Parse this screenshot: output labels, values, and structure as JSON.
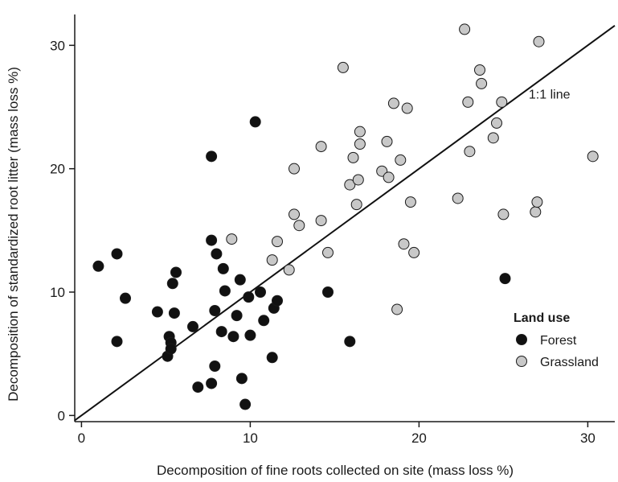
{
  "chart_data": {
    "type": "scatter",
    "xlabel": "Decomposition of fine roots collected on site (mass loss %)",
    "ylabel": "Decomposition of standardized root litter (mass loss %)",
    "xlim": [
      -0.4,
      31.6
    ],
    "ylim": [
      -0.5,
      32.5
    ],
    "xticks": [
      0,
      10,
      20,
      30
    ],
    "yticks": [
      0,
      10,
      20,
      30
    ],
    "grid": false,
    "legend": {
      "title": "Land use",
      "position": "lower-right"
    },
    "annotations": [
      {
        "text": "1:1 line",
        "x": 26.5,
        "y": 25.7
      }
    ],
    "reference_line": {
      "name": "1:1 line",
      "x": [
        -0.4,
        31.6
      ],
      "y": [
        -0.4,
        31.6
      ]
    },
    "series": [
      {
        "name": "Forest",
        "color": "#111111",
        "points": [
          [
            1.0,
            12.1
          ],
          [
            2.1,
            13.1
          ],
          [
            2.1,
            6.0
          ],
          [
            2.6,
            9.5
          ],
          [
            4.5,
            8.4
          ],
          [
            5.1,
            4.8
          ],
          [
            5.2,
            6.4
          ],
          [
            5.3,
            5.9
          ],
          [
            5.3,
            5.4
          ],
          [
            5.4,
            10.7
          ],
          [
            5.5,
            8.3
          ],
          [
            5.6,
            11.6
          ],
          [
            6.6,
            7.2
          ],
          [
            6.9,
            2.3
          ],
          [
            7.7,
            2.6
          ],
          [
            7.7,
            14.2
          ],
          [
            7.7,
            21.0
          ],
          [
            7.9,
            8.5
          ],
          [
            7.9,
            4.0
          ],
          [
            8.0,
            13.1
          ],
          [
            8.3,
            6.8
          ],
          [
            8.4,
            11.9
          ],
          [
            8.5,
            10.1
          ],
          [
            9.0,
            6.4
          ],
          [
            9.2,
            8.1
          ],
          [
            9.4,
            11.0
          ],
          [
            9.5,
            3.0
          ],
          [
            9.7,
            0.9
          ],
          [
            9.9,
            9.6
          ],
          [
            10.0,
            6.5
          ],
          [
            10.3,
            23.8
          ],
          [
            10.6,
            10.0
          ],
          [
            10.8,
            7.7
          ],
          [
            11.3,
            4.7
          ],
          [
            11.4,
            8.7
          ],
          [
            11.6,
            9.3
          ],
          [
            14.6,
            10.0
          ],
          [
            15.9,
            6.0
          ],
          [
            25.1,
            11.1
          ]
        ]
      },
      {
        "name": "Grassland",
        "color": "#c8c8c8",
        "points": [
          [
            8.9,
            14.3
          ],
          [
            11.3,
            12.6
          ],
          [
            11.6,
            14.1
          ],
          [
            12.3,
            11.8
          ],
          [
            12.6,
            20.0
          ],
          [
            12.6,
            16.3
          ],
          [
            12.9,
            15.4
          ],
          [
            14.2,
            15.8
          ],
          [
            14.2,
            21.8
          ],
          [
            14.6,
            13.2
          ],
          [
            15.5,
            28.2
          ],
          [
            15.9,
            18.7
          ],
          [
            16.1,
            20.9
          ],
          [
            16.3,
            17.1
          ],
          [
            16.4,
            19.1
          ],
          [
            16.5,
            23.0
          ],
          [
            16.5,
            22.0
          ],
          [
            17.8,
            19.8
          ],
          [
            18.1,
            22.2
          ],
          [
            18.2,
            19.3
          ],
          [
            18.5,
            25.3
          ],
          [
            18.7,
            8.6
          ],
          [
            18.9,
            20.7
          ],
          [
            19.1,
            13.9
          ],
          [
            19.3,
            24.9
          ],
          [
            19.5,
            17.3
          ],
          [
            19.7,
            13.2
          ],
          [
            22.3,
            17.6
          ],
          [
            22.7,
            31.3
          ],
          [
            22.9,
            25.4
          ],
          [
            23.0,
            21.4
          ],
          [
            23.6,
            28.0
          ],
          [
            23.7,
            26.9
          ],
          [
            24.4,
            22.5
          ],
          [
            24.6,
            23.7
          ],
          [
            24.9,
            25.4
          ],
          [
            25.0,
            16.3
          ],
          [
            26.9,
            16.5
          ],
          [
            27.0,
            17.3
          ],
          [
            27.1,
            30.3
          ],
          [
            30.3,
            21.0
          ]
        ]
      }
    ]
  }
}
